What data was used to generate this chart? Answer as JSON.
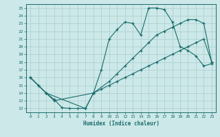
{
  "xlabel": "Humidex (Indice chaleur)",
  "bg_color": "#cce8e8",
  "line_color": "#1a6b6b",
  "grid_color": "#aacccc",
  "xlim": [
    -0.5,
    23.5
  ],
  "ylim": [
    11.5,
    25.5
  ],
  "xticks": [
    0,
    1,
    2,
    3,
    4,
    5,
    6,
    7,
    8,
    9,
    10,
    11,
    12,
    13,
    14,
    15,
    16,
    17,
    18,
    19,
    20,
    21,
    22,
    23
  ],
  "yticks": [
    12,
    13,
    14,
    15,
    16,
    17,
    18,
    19,
    20,
    21,
    22,
    23,
    24,
    25
  ],
  "line1_x": [
    0,
    1,
    2,
    3,
    4,
    5,
    6,
    7,
    8,
    9,
    10,
    11,
    12,
    13,
    14,
    15,
    16,
    17,
    18,
    19,
    20,
    21,
    22,
    23
  ],
  "line1_y": [
    16.0,
    15.0,
    14.0,
    13.2,
    12.1,
    12.0,
    12.0,
    12.0,
    14.0,
    17.0,
    21.0,
    22.2,
    23.2,
    23.0,
    21.5,
    25.0,
    25.0,
    24.8,
    23.2,
    20.0,
    19.5,
    18.8,
    17.5,
    17.8
  ],
  "line2_x": [
    0,
    2,
    7,
    8,
    10,
    11,
    12,
    13,
    14,
    15,
    16,
    17,
    18,
    19,
    20,
    21,
    22,
    23
  ],
  "line2_y": [
    16.0,
    14.0,
    12.0,
    14.0,
    15.5,
    16.5,
    17.5,
    18.5,
    19.5,
    20.5,
    21.5,
    22.0,
    22.5,
    23.0,
    23.5,
    23.5,
    23.0,
    18.0
  ],
  "line3_x": [
    0,
    1,
    2,
    3,
    8,
    9,
    10,
    11,
    12,
    13,
    14,
    15,
    16,
    17,
    18,
    19,
    20,
    21,
    22,
    23
  ],
  "line3_y": [
    16.0,
    15.0,
    14.0,
    13.0,
    14.0,
    14.5,
    15.0,
    15.5,
    16.0,
    16.5,
    17.0,
    17.5,
    18.0,
    18.5,
    19.0,
    19.5,
    20.0,
    20.5,
    21.0,
    18.0
  ]
}
